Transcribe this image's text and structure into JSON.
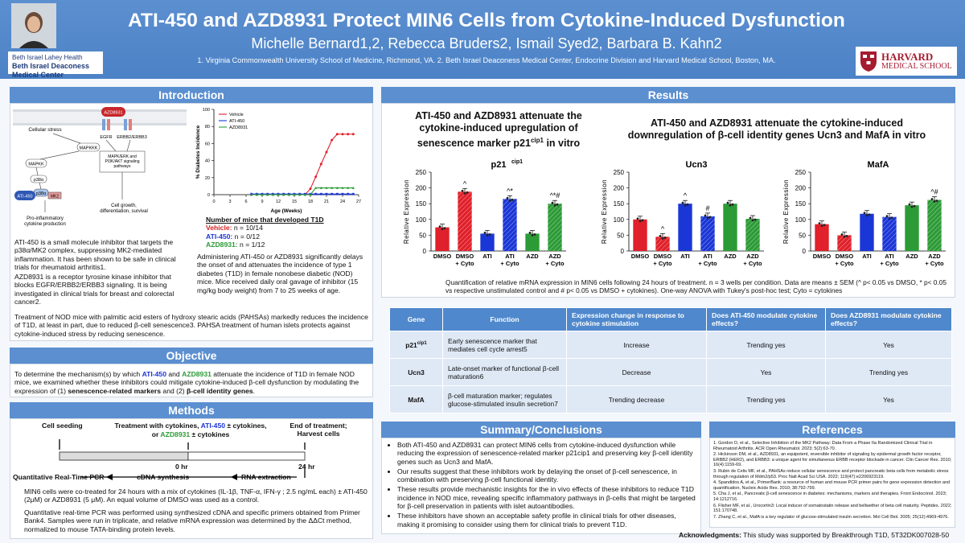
{
  "header": {
    "title": "ATI-450 and AZD8931 Protect MIN6 Cells from Cytokine-Induced Dysfunction",
    "authors": "Michelle Bernard1,2, Rebecca Bruders2, Ismail Syed2, Barbara B. Kahn2",
    "affiliations": "1. Virginia Commonwealth University School of Medicine, Richmond, VA.  2. Beth Israel Deaconess Medical Center, Endocrine Division and Harvard Medical School, Boston, MA.",
    "logo_bidmc_line1": "Beth Israel Lahey Health",
    "logo_bidmc_line2": "Beth Israel Deaconess Medical Center",
    "logo_harvard_line1": "HARVARD",
    "logo_harvard_line2": "MEDICAL SCHOOL"
  },
  "intro": {
    "heading": "Introduction",
    "diagram": {
      "cellular_stress": "Cellular stress",
      "mapkkk": "MAPKKK",
      "mapkk": "MAPKK",
      "p38a": "p38α",
      "p38a2": "p38α",
      "mk2": "MK2",
      "ati450": "ATI-450",
      "azd8931": "AZD8931",
      "egfr": "EGFR",
      "erbb": "ERBB2/ERBB3",
      "pathways": "MAPK/ERK and PI3K/AKT signaling pathways",
      "proinflam": "Pro-inflammatory cytokine production",
      "growth": "Cell growth, differentiation, survival"
    },
    "p1": "ATI-450 is a small molecule inhibitor that targets the p38α/MK2 complex, suppressing MK2-mediated inflammation. It has been shown to be safe in clinical trials for rheumatoid arthritis1.",
    "p2": "AZD8931 is a receptor tyrosine kinase inhibitor that blocks EGFR/ERBB2/ERBB3 signaling. It is being investigated in clinical trials for breast and colorectal cancer2.",
    "mice_title": "Number of mice that developed T1D",
    "mice_vehicle_label": "Vehicle:",
    "mice_vehicle_value": "n = 10/14",
    "mice_ati_label": "ATI-450:",
    "mice_ati_value": "n = 0/12",
    "mice_azd_label": "AZD8931:",
    "mice_azd_value": "n = 1/12",
    "p3": "Administering ATI-450 or AZD8931 significantly delays the onset of and attenuates the incidence of type 1 diabetes (T1D) in female nonobese diabetic (NOD) mice. Mice received daily oral gavage of inhibitor (15 mg/kg body weight) from 7 to 25 weeks of age.",
    "p4": "Treatment of NOD mice with palmitic acid esters of hydroxy stearic acids (PAHSAs) markedly reduces the incidence of T1D, at least in part, due to reduced β-cell senescence3. PAHSA treatment of human islets protects against cytokine-induced stress by reducing senescence."
  },
  "objective": {
    "heading": "Objective",
    "t1": "To determine the mechanism(s) by which ",
    "ati": "ATI-450",
    "t2": " and ",
    "azd": "AZD8931",
    "t3": " attenuate the incidence of T1D in female NOD mice, we examined whether these inhibitors could mitigate cytokine-induced β-cell dysfunction by modulating the expression of (1) ",
    "b1": "senescence-related markers",
    "t4": " and (2) ",
    "b2": "β-cell identity genes",
    "t5": "."
  },
  "methods": {
    "heading": "Methods",
    "cell_seeding": "Cell seeding",
    "treat1": "Treatment with cytokines, ",
    "treat_ati": "ATI-450",
    "treat2": " ± cytokines,",
    "treat3": "or ",
    "treat_azd": "AZD8931",
    "treat4": " ± cytokines",
    "end": "End of treatment; Harvest cells",
    "t0": "0 hr",
    "t24": "24 hr",
    "qpcr": "Quantitative Real-Time PCR",
    "cdna": "cDNA synthesis",
    "rna": "RNA extraction",
    "p1": "MIN6 cells were co-treated for 24 hours with a mix of cytokines (IL-1β, TNF-α, IFN-γ ; 2.5 ng/mL each) ± ATI-450 (2μM) or AZD8931 (5 μM). An equal volume of DMSO was used as a control.",
    "p2": "Quantitative real-time PCR was performed using synthesized cDNA and specific primers obtained from Primer Bank4. Samples were run in triplicate, and relative mRNA expression was determined by the ΔΔCt method, normalized to mouse TATA-binding protein levels."
  },
  "results": {
    "heading": "Results",
    "h1": "ATI-450 and AZD8931 attenuate the cytokine-induced upregulation of senescence marker p21cip1 in vitro",
    "h2": "ATI-450 and AZD8931 attenuate the cytokine-induced downregulation of β-cell identity genes Ucn3 and MafA in vitro",
    "caption": "Quantification of relative mRNA expression in MIN6 cells following 24 hours of treatment. n = 3 wells per condition. Data are means ± SEM  (^ p< 0.05 vs DMSO, * p< 0.05 vs respective unstimulated control and # p< 0.05 vs DMSO + cytokines). One-way ANOVA with Tukey's post-hoc test; Cyto = cytokines"
  },
  "table": {
    "headers": [
      "Gene",
      "Function",
      "Expression change in response to cytokine stimulation",
      "Does ATI-450 modulate cytokine effects?",
      "Does AZD8931 modulate cytokine effects?"
    ],
    "rows": [
      {
        "gene": "p21cip1",
        "function": "Early senescence marker that mediates cell cycle arrest5",
        "change": "Increase",
        "ati": "Trending yes",
        "azd": "Yes"
      },
      {
        "gene": "Ucn3",
        "function": "Late-onset marker of functional β-cell maturation6",
        "change": "Decrease",
        "ati": "Yes",
        "azd": "Trending yes"
      },
      {
        "gene": "MafA",
        "function": "β-cell maturation marker; regulates glucose-stimulated insulin secretion7",
        "change": "Trending decrease",
        "ati": "Trending yes",
        "azd": "Yes"
      }
    ]
  },
  "summary": {
    "heading": "Summary/Conclusions",
    "items": [
      "Both ATI-450 and AZD8931 can protect MIN6 cells from cytokine-induced dysfunction while reducing the expression of senescence-related marker p21cip1 and preserving key β-cell identity genes such as Ucn3 and MafA.",
      "Our results suggest that these inhibitors work by delaying the onset of β-cell senescence, in combination with preserving β-cell functional identity.",
      "These results provide mechanistic insights for the in vivo effects of these inhibitors to reduce T1D incidence in NOD mice, revealing specific inflammatory pathways in β-cells that might be targeted for β-cell preservation in patients with islet autoantibodies.",
      "These inhibitors have shown an acceptable safety profile in clinical trials for other diseases, making it promising to consider using them for clinical trials to prevent T1D."
    ]
  },
  "references": {
    "heading": "References",
    "items": [
      "1. Gordon D, et al., Selective Inhibition of the MK2 Pathway: Data From a Phase IIa Randomized Clinical Trial in Rheumatoid Arthritis. ACR Open Rheumatol. 2023; 5(2):63-70.",
      "2. Hickinson DM, et al., AZD8931, an equipotent, reversible inhibitor of signaling by epidermal growth factor receptor, ERBB2 (HER2), and ERBB3: a unique agent for simultaneous ERBB receptor blockade in cancer. Clin Cancer Res. 2010; 16(4):1159-69.",
      "3. Rubin de Celis MF, et al., PAHSAs reduce cellular senescence and protect pancreatic beta cells from metabolic stress through regulation of Mdm2/p53. Proc Natl Acad Sci USA. 2022; 119(47):e2206923119.",
      "4. Spandidos A, et al., PrimerBank: a resource of human and mouse PCR primer pairs for gene expression detection and quantification, Nucleic Acids Res. 2010; 38:792-799.",
      "5. Cha J, et al., Pancreatic β-cell senescence in diabetes: mechanisms, markers and therapies. Front Endocrinol. 2023; 14:1212716.",
      "6. Flisher MF, et al., Urocortin3: Local inducer of somatostatin release and bellwether of beta cell maturity. Peptides. 2022; 151:170748.",
      "7. Zhang C, et al., MafA is a key regulator of glucose-stimulated insulin secretion. Mol Cell Biol. 2005; 25(12):4969-4976."
    ]
  },
  "ack": {
    "label": "Acknowledgments:",
    "text": " This study was supported by Breakthrough T1D, 5T32DK007028-50"
  },
  "chart_data": [
    {
      "type": "line",
      "title": "",
      "xlabel": "Age (Weeks)",
      "ylabel": "% Diabetes Incidence",
      "xlim": [
        0,
        27
      ],
      "ylim": [
        0,
        100
      ],
      "xticks": [
        0,
        3,
        6,
        9,
        12,
        15,
        18,
        21,
        24,
        27
      ],
      "yticks": [
        0,
        20,
        40,
        60,
        80,
        100
      ],
      "legend_position": "top-left",
      "x": [
        7,
        8,
        9,
        10,
        11,
        12,
        13,
        14,
        15,
        16,
        17,
        18,
        19,
        20,
        21,
        22,
        23,
        24,
        25,
        26
      ],
      "series": [
        {
          "name": "Vehicle",
          "color": "#e0202a",
          "values": [
            0,
            0,
            0,
            0,
            0,
            0,
            0,
            0,
            0,
            0,
            0,
            7,
            21,
            36,
            50,
            64,
            71,
            71,
            71,
            71
          ]
        },
        {
          "name": "ATI-450",
          "color": "#1b36d6",
          "values": [
            0,
            0,
            0,
            0,
            0,
            0,
            0,
            0,
            0,
            0,
            0,
            0,
            0,
            0,
            0,
            0,
            0,
            0,
            0,
            0
          ]
        },
        {
          "name": "AZD8931",
          "color": "#2c9b36",
          "values": [
            0,
            0,
            0,
            0,
            0,
            0,
            0,
            0,
            0,
            0,
            0,
            0,
            8,
            8,
            8,
            8,
            8,
            8,
            8,
            8
          ]
        }
      ]
    },
    {
      "type": "bar",
      "title": "p21cip1",
      "ylabel": "Relative Expression",
      "ylim": [
        0,
        250
      ],
      "yticks": [
        0,
        50,
        100,
        150,
        200,
        250
      ],
      "categories": [
        "DMSO",
        "DMSO + Cyto",
        "ATI",
        "ATI + Cyto",
        "AZD",
        "AZD + Cyto"
      ],
      "values": [
        75,
        188,
        55,
        165,
        55,
        150
      ],
      "annotations": [
        "",
        "^",
        "",
        "^*",
        "",
        "^*#"
      ]
    },
    {
      "type": "bar",
      "title": "Ucn3",
      "ylabel": "Relative Expression",
      "ylim": [
        0,
        250
      ],
      "yticks": [
        0,
        50,
        100,
        150,
        200,
        250
      ],
      "categories": [
        "DMSO",
        "DMSO + Cyto",
        "ATI",
        "ATI + Cyto",
        "AZD",
        "AZD + Cyto"
      ],
      "values": [
        100,
        45,
        150,
        110,
        150,
        102
      ],
      "annotations": [
        "",
        "^",
        "^",
        "#",
        "",
        ""
      ]
    },
    {
      "type": "bar",
      "title": "MafA",
      "ylabel": "Relative Expression",
      "ylim": [
        0,
        250
      ],
      "yticks": [
        0,
        50,
        100,
        150,
        200,
        250
      ],
      "categories": [
        "DMSO",
        "DMSO + Cyto",
        "ATI",
        "ATI + Cyto",
        "AZD",
        "AZD + Cyto"
      ],
      "values": [
        85,
        50,
        118,
        108,
        145,
        162
      ],
      "annotations": [
        "",
        "",
        "",
        "",
        "",
        "^#"
      ]
    }
  ],
  "bar_colors": {
    "dmso": "#e0202a",
    "ati": "#1b36d6",
    "azd": "#2c9b36"
  }
}
